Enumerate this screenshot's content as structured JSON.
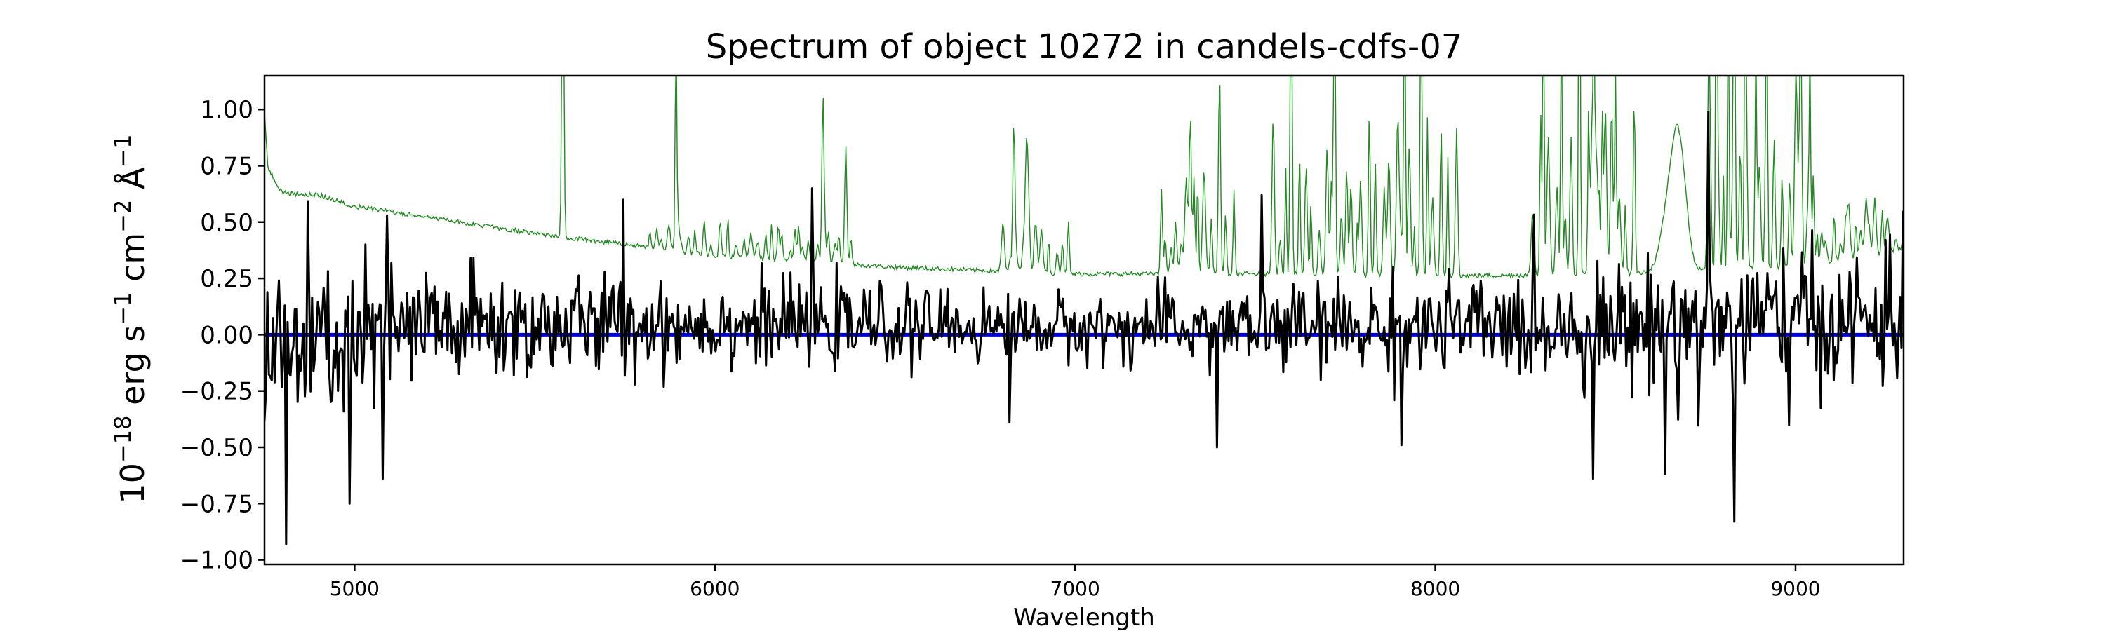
{
  "chart_data": {
    "type": "line",
    "title": "Spectrum of object 10272 in candels-cdfs-07",
    "xlabel": "Wavelength",
    "ylabel": {
      "base": "10",
      "exp": "−18",
      "unit1": " erg s",
      "exp1": "−1",
      "unit2": " cm",
      "exp2": "−2",
      "unit3": " Å",
      "exp3": "−1"
    },
    "xlim": [
      4750,
      9300
    ],
    "ylim": [
      -1.02,
      1.15
    ],
    "xticks": [
      5000,
      6000,
      7000,
      8000,
      9000
    ],
    "yticks": [
      1.0,
      0.75,
      0.5,
      0.25,
      0.0,
      -0.25,
      -0.5,
      -0.75,
      -1.0
    ],
    "xtick_labels": [
      "5000",
      "6000",
      "7000",
      "8000",
      "9000"
    ],
    "ytick_labels": [
      "1.00",
      "0.75",
      "0.50",
      "0.25",
      "0.00",
      "−0.25",
      "−0.50",
      "−0.75",
      "−1.00"
    ],
    "grid": false,
    "series": [
      {
        "role": "flux",
        "color": "#000000",
        "x_range": [
          4750,
          9300
        ],
        "step": 4,
        "noise_anchors": [
          [
            4750,
            0.42
          ],
          [
            5000,
            0.3
          ],
          [
            5500,
            0.22
          ],
          [
            6000,
            0.17
          ],
          [
            6500,
            0.15
          ],
          [
            7000,
            0.13
          ],
          [
            7500,
            0.17
          ],
          [
            8000,
            0.2
          ],
          [
            8500,
            0.22
          ],
          [
            8800,
            0.32
          ],
          [
            9300,
            0.25
          ]
        ],
        "trend_anchors": [
          [
            4750,
            -0.1
          ],
          [
            5200,
            0.03
          ],
          [
            6000,
            0.05
          ],
          [
            7000,
            0.03
          ],
          [
            8000,
            0.03
          ],
          [
            9300,
            0.06
          ]
        ],
        "extremes": [
          [
            4810,
            -0.93
          ],
          [
            4985,
            -0.75
          ],
          [
            5080,
            -0.64
          ],
          [
            5090,
            0.53
          ],
          [
            5745,
            0.6
          ],
          [
            6270,
            0.65
          ],
          [
            6820,
            -0.39
          ],
          [
            7395,
            -0.5
          ],
          [
            7520,
            0.62
          ],
          [
            7905,
            -0.49
          ],
          [
            8440,
            -0.64
          ],
          [
            8640,
            -0.62
          ],
          [
            8760,
            0.99
          ],
          [
            8830,
            -0.83
          ],
          [
            9300,
            0.55
          ]
        ]
      },
      {
        "role": "error",
        "color": "#228b22",
        "x_range": [
          4750,
          9300
        ],
        "step": 3,
        "baseline_anchors": [
          [
            4750,
            0.95
          ],
          [
            4760,
            0.68
          ],
          [
            4800,
            0.63
          ],
          [
            4900,
            0.62
          ],
          [
            5000,
            0.57
          ],
          [
            5500,
            0.45
          ],
          [
            6000,
            0.35
          ],
          [
            6500,
            0.3
          ],
          [
            7000,
            0.27
          ],
          [
            7500,
            0.27
          ],
          [
            8000,
            0.26
          ],
          [
            8500,
            0.27
          ],
          [
            9000,
            0.3
          ],
          [
            9300,
            0.38
          ]
        ],
        "lines": [
          [
            5578,
            1.5,
            4
          ],
          [
            5892,
            0.9,
            3
          ],
          [
            6300,
            0.72,
            4
          ],
          [
            6364,
            0.5,
            4
          ],
          [
            6830,
            0.67,
            4
          ],
          [
            6865,
            0.52,
            6
          ],
          [
            7320,
            0.72,
            4
          ],
          [
            7400,
            0.6,
            4
          ],
          [
            7600,
            0.98,
            4
          ],
          [
            7720,
            0.85,
            4
          ],
          [
            7915,
            1.2,
            3
          ],
          [
            7960,
            0.9,
            3
          ],
          [
            8300,
            1.3,
            3
          ],
          [
            8350,
            1.25,
            3
          ],
          [
            8400,
            1.3,
            3
          ],
          [
            8440,
            1.2,
            3
          ],
          [
            8500,
            0.95,
            3
          ],
          [
            8780,
            1.5,
            3
          ],
          [
            8830,
            1.5,
            3
          ],
          [
            8860,
            1.5,
            3
          ],
          [
            8920,
            1.5,
            3
          ],
          [
            9040,
            0.9,
            3
          ]
        ],
        "forest_ranges": [
          [
            5820,
            6400,
            0.12
          ],
          [
            6800,
            7000,
            0.18
          ],
          [
            7240,
            7450,
            0.35
          ],
          [
            7550,
            8080,
            0.5
          ],
          [
            8270,
            8560,
            0.6
          ],
          [
            8760,
            9060,
            0.75
          ],
          [
            9060,
            9300,
            0.18
          ]
        ],
        "bumps": [
          [
            4760,
            0.05,
            25
          ],
          [
            8660,
            0.42,
            35
          ],
          [
            8680,
            0.3,
            25
          ]
        ]
      },
      {
        "role": "model",
        "color": "#0000dd",
        "values_y": 0.0
      }
    ]
  }
}
